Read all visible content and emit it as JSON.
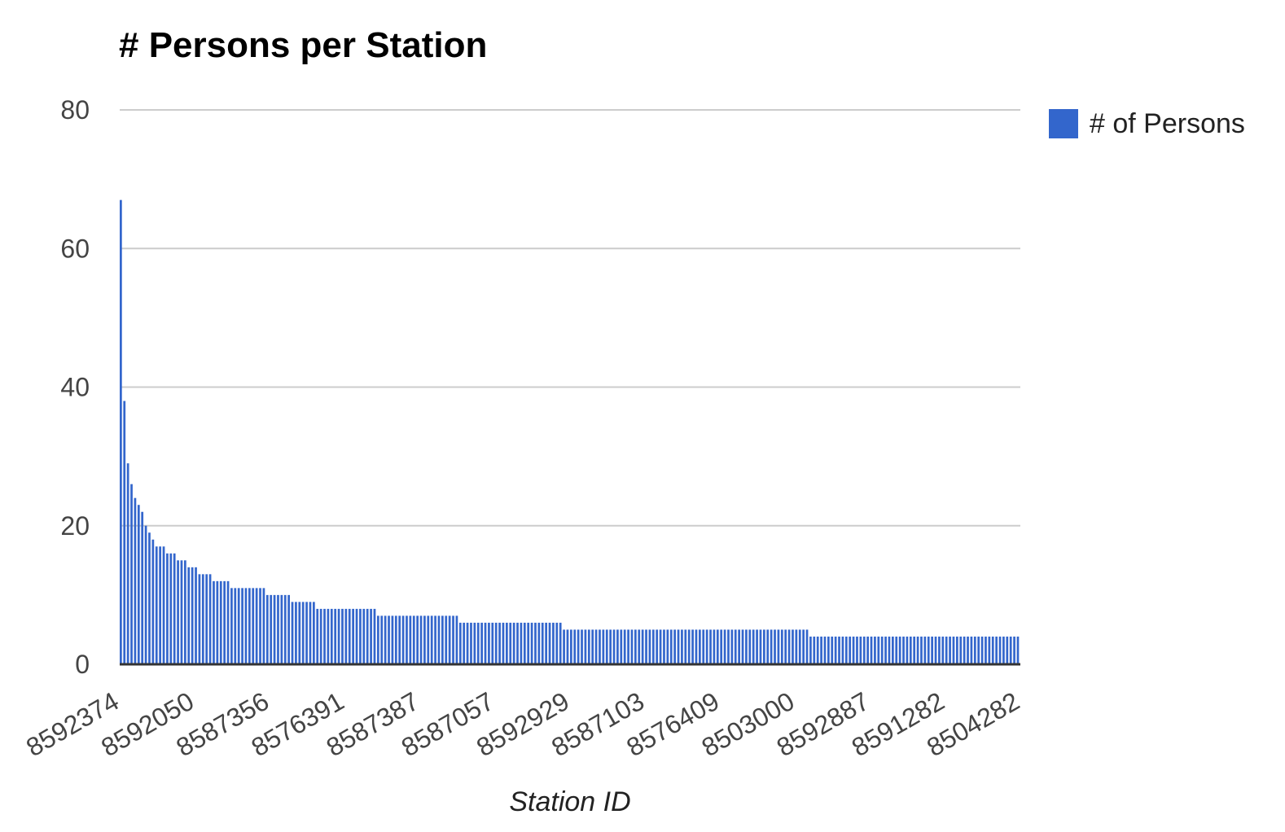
{
  "chart_data": {
    "type": "bar",
    "title": "# Persons per Station",
    "xlabel": "Station ID",
    "ylabel": "",
    "ylim": [
      0,
      80
    ],
    "yticks": [
      0,
      20,
      40,
      60,
      80
    ],
    "grid": true,
    "legend_position": "right",
    "color": "#3366cc",
    "series": [
      {
        "name": "# of Persons",
        "values": [
          67,
          38,
          29,
          26,
          24,
          23,
          22,
          20,
          19,
          18,
          17,
          17,
          17,
          16,
          16,
          16,
          15,
          15,
          15,
          14,
          14,
          14,
          13,
          13,
          13,
          13,
          12,
          12,
          12,
          12,
          12,
          11,
          11,
          11,
          11,
          11,
          11,
          11,
          11,
          11,
          11,
          10,
          10,
          10,
          10,
          10,
          10,
          10,
          9,
          9,
          9,
          9,
          9,
          9,
          9,
          8,
          8,
          8,
          8,
          8,
          8,
          8,
          8,
          8,
          8,
          8,
          8,
          8,
          8,
          8,
          8,
          8,
          7,
          7,
          7,
          7,
          7,
          7,
          7,
          7,
          7,
          7,
          7,
          7,
          7,
          7,
          7,
          7,
          7,
          7,
          7,
          7,
          7,
          7,
          7,
          6,
          6,
          6,
          6,
          6,
          6,
          6,
          6,
          6,
          6,
          6,
          6,
          6,
          6,
          6,
          6,
          6,
          6,
          6,
          6,
          6,
          6,
          6,
          6,
          6,
          6,
          6,
          6,
          6,
          5,
          5,
          5,
          5,
          5,
          5,
          5,
          5,
          5,
          5,
          5,
          5,
          5,
          5,
          5,
          5,
          5,
          5,
          5,
          5,
          5,
          5,
          5,
          5,
          5,
          5,
          5,
          5,
          5,
          5,
          5,
          5,
          5,
          5,
          5,
          5,
          5,
          5,
          5,
          5,
          5,
          5,
          5,
          5,
          5,
          5,
          5,
          5,
          5,
          5,
          5,
          5,
          5,
          5,
          5,
          5,
          5,
          5,
          5,
          5,
          5,
          5,
          5,
          5,
          5,
          5,
          5,
          5,
          5,
          4,
          4,
          4,
          4,
          4,
          4,
          4,
          4,
          4,
          4,
          4,
          4,
          4,
          4,
          4,
          4,
          4,
          4,
          4,
          4,
          4,
          4,
          4,
          4,
          4,
          4,
          4,
          4,
          4,
          4,
          4,
          4,
          4,
          4,
          4,
          4,
          4,
          4,
          4,
          4,
          4,
          4,
          4,
          4,
          4,
          4,
          4,
          4,
          4,
          4,
          4,
          4,
          4,
          4,
          4,
          4,
          4,
          4,
          4
        ]
      }
    ],
    "category_labels": [
      {
        "index": 0,
        "label": "8592374"
      },
      {
        "index": 21,
        "label": "8592050"
      },
      {
        "index": 42,
        "label": "8587356"
      },
      {
        "index": 63,
        "label": "8576391"
      },
      {
        "index": 84,
        "label": "8587387"
      },
      {
        "index": 105,
        "label": "8587057"
      },
      {
        "index": 126,
        "label": "8592929"
      },
      {
        "index": 147,
        "label": "8587103"
      },
      {
        "index": 168,
        "label": "8576409"
      },
      {
        "index": 189,
        "label": "8503000"
      },
      {
        "index": 210,
        "label": "8592887"
      },
      {
        "index": 231,
        "label": "8591282"
      },
      {
        "index": 252,
        "label": "8504282"
      }
    ]
  }
}
